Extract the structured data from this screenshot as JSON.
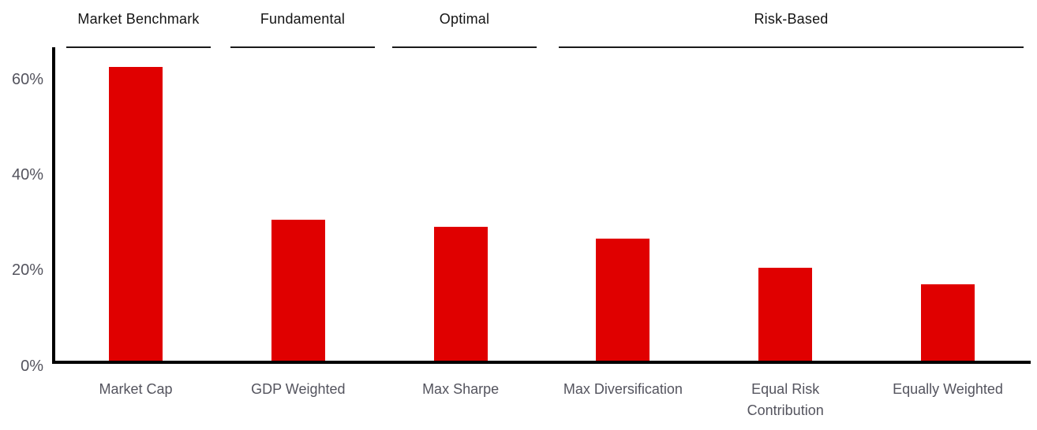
{
  "groups": [
    {
      "label": "Market Benchmark"
    },
    {
      "label": "Fundamental"
    },
    {
      "label": "Optimal"
    },
    {
      "label": "Risk-Based"
    }
  ],
  "chart_data": {
    "type": "bar",
    "title": "",
    "categories": [
      "Market Cap",
      "GDP Weighted",
      "Max Sharpe",
      "Max Diversification",
      "Equal Risk Contribution",
      "Equally Weighted"
    ],
    "values": [
      62,
      30,
      28.5,
      26,
      20,
      16.5
    ],
    "unit": "%",
    "category_groups": [
      "Market Benchmark",
      "Fundamental",
      "Optimal",
      "Risk-Based",
      "Risk-Based",
      "Risk-Based"
    ],
    "yticks": [
      0,
      20,
      40,
      60
    ],
    "ytick_labels": [
      "0%",
      "20%",
      "40%",
      "60%"
    ],
    "ylim": [
      0,
      66
    ],
    "xlabel": "",
    "ylabel": "",
    "grid": false,
    "legend": false,
    "bar_color": "#e00000",
    "axis_color": "#000000",
    "tick_label_color": "#54545e",
    "header_color": "#141414"
  }
}
